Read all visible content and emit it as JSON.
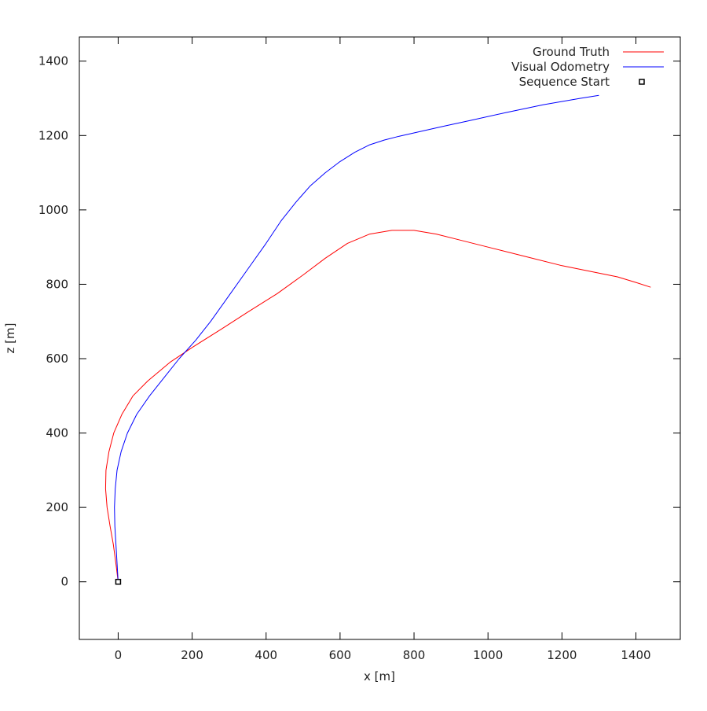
{
  "chart_data": {
    "type": "line",
    "title": "",
    "xlabel": "x [m]",
    "ylabel": "z [m]",
    "xlim": [
      -105,
      1520
    ],
    "ylim": [
      -155,
      1465
    ],
    "x_ticks": [
      0,
      200,
      400,
      600,
      800,
      1000,
      1200,
      1400
    ],
    "y_ticks": [
      0,
      200,
      400,
      600,
      800,
      1000,
      1200,
      1400
    ],
    "grid": false,
    "legend_position": "top-right",
    "series": [
      {
        "name": "Ground Truth",
        "color": "#ff0000",
        "style": "line",
        "points": [
          [
            0,
            0
          ],
          [
            -5,
            40
          ],
          [
            -13,
            100
          ],
          [
            -22,
            150
          ],
          [
            -30,
            200
          ],
          [
            -34,
            250
          ],
          [
            -33,
            300
          ],
          [
            -25,
            350
          ],
          [
            -12,
            400
          ],
          [
            10,
            450
          ],
          [
            40,
            500
          ],
          [
            80,
            540
          ],
          [
            140,
            590
          ],
          [
            200,
            630
          ],
          [
            280,
            680
          ],
          [
            350,
            725
          ],
          [
            430,
            775
          ],
          [
            500,
            825
          ],
          [
            560,
            870
          ],
          [
            620,
            910
          ],
          [
            680,
            935
          ],
          [
            740,
            945
          ],
          [
            800,
            945
          ],
          [
            860,
            935
          ],
          [
            920,
            920
          ],
          [
            1000,
            900
          ],
          [
            1100,
            875
          ],
          [
            1200,
            850
          ],
          [
            1300,
            830
          ],
          [
            1350,
            820
          ],
          [
            1400,
            805
          ],
          [
            1440,
            792
          ]
        ]
      },
      {
        "name": "Visual Odometry",
        "color": "#0000ff",
        "style": "line",
        "points": [
          [
            0,
            0
          ],
          [
            -3,
            50
          ],
          [
            -6,
            100
          ],
          [
            -9,
            150
          ],
          [
            -10,
            200
          ],
          [
            -8,
            250
          ],
          [
            -3,
            300
          ],
          [
            8,
            350
          ],
          [
            25,
            400
          ],
          [
            50,
            450
          ],
          [
            85,
            500
          ],
          [
            125,
            550
          ],
          [
            165,
            600
          ],
          [
            210,
            650
          ],
          [
            250,
            700
          ],
          [
            300,
            770
          ],
          [
            350,
            840
          ],
          [
            400,
            910
          ],
          [
            440,
            970
          ],
          [
            480,
            1020
          ],
          [
            520,
            1065
          ],
          [
            560,
            1100
          ],
          [
            600,
            1130
          ],
          [
            640,
            1155
          ],
          [
            680,
            1175
          ],
          [
            720,
            1188
          ],
          [
            760,
            1198
          ],
          [
            800,
            1207
          ],
          [
            880,
            1225
          ],
          [
            950,
            1240
          ],
          [
            1050,
            1262
          ],
          [
            1150,
            1283
          ],
          [
            1250,
            1300
          ],
          [
            1300,
            1308
          ]
        ]
      },
      {
        "name": "Sequence Start",
        "color": "#000000",
        "style": "marker",
        "points": [
          [
            0,
            0
          ]
        ]
      }
    ]
  }
}
